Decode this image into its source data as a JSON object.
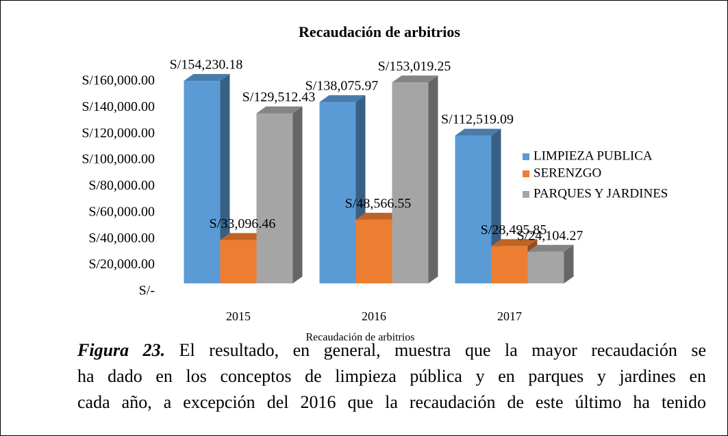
{
  "chart_data": {
    "type": "bar",
    "title": "Recaudación de arbitrios",
    "categories": [
      "2015",
      "2016",
      "2017"
    ],
    "series": [
      {
        "name": "LIMPIEZA PUBLICA",
        "color": "#5b9bd5",
        "values": [
          154230.18,
          138075.97,
          112519.09
        ],
        "value_labels": [
          "S/154,230.18",
          "S/138,075.97",
          "S/112,519.09"
        ]
      },
      {
        "name": "SERENZGO",
        "color": "#ed7d31",
        "values": [
          33096.46,
          48566.55,
          28495.85
        ],
        "value_labels": [
          "S/33,096.46",
          "S/48,566.55",
          "S/28,495.85"
        ]
      },
      {
        "name": "PARQUES Y JARDINES",
        "color": "#a5a5a5",
        "values": [
          129512.43,
          153019.25,
          24104.27
        ],
        "value_labels": [
          "S/129,512.43",
          "S/153,019.25",
          "S/24,104.27"
        ]
      }
    ],
    "ylim": [
      0,
      160000
    ],
    "yticks": [
      {
        "value": 0,
        "label": "S/-"
      },
      {
        "value": 20000,
        "label": "S/20,000.00"
      },
      {
        "value": 40000,
        "label": "S/40,000.00"
      },
      {
        "value": 60000,
        "label": "S/60,000.00"
      },
      {
        "value": 80000,
        "label": "S/80,000.00"
      },
      {
        "value": 100000,
        "label": "S/100,000.00"
      },
      {
        "value": 120000,
        "label": "S/120,000.00"
      },
      {
        "value": 140000,
        "label": "S/140,000.00"
      },
      {
        "value": 160000,
        "label": "S/160,000.00"
      }
    ],
    "xlabel": "Recaudación de arbitrios",
    "legend": "right"
  },
  "caption": {
    "label": "Figura 23.",
    "lines": [
      "El resultado, en general, muestra que la mayor recaudación se",
      "ha dado en los conceptos de limpieza pública y en parques y jardines en",
      "cada año, a excepción del 2016 que la recaudación de este último ha tenido"
    ]
  }
}
